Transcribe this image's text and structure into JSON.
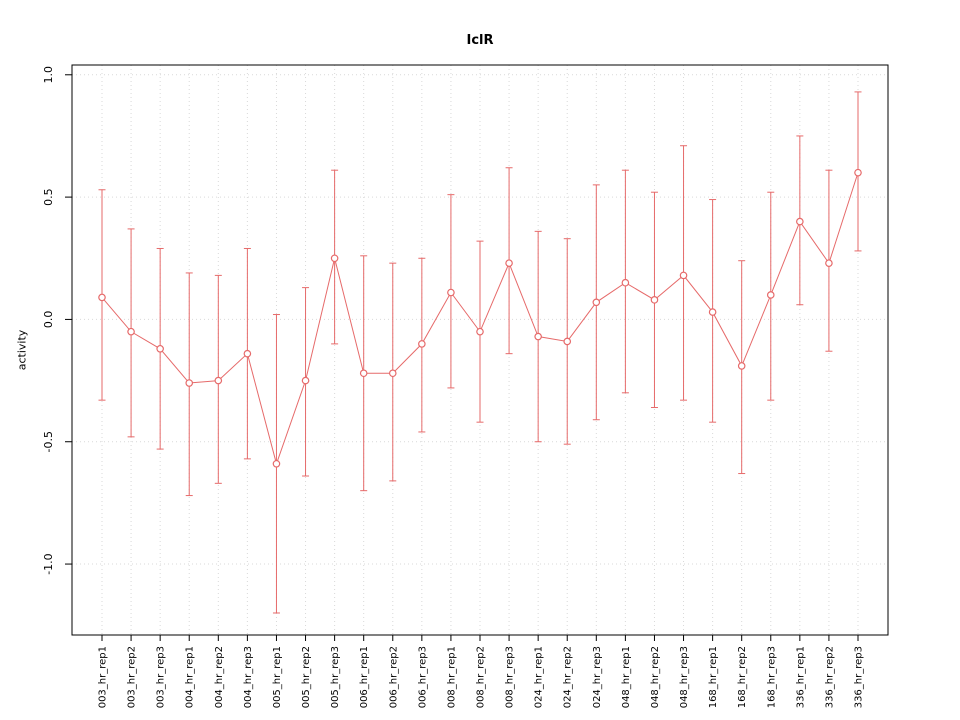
{
  "chart_data": {
    "type": "line",
    "title": "IclR",
    "ylabel": "activity",
    "xlabel": "",
    "legend": "none",
    "grid": true,
    "categories": [
      "003_hr_rep1",
      "003_hr_rep2",
      "003_hr_rep3",
      "004_hr_rep1",
      "004_hr_rep2",
      "004_hr_rep3",
      "005_hr_rep1",
      "005_hr_rep2",
      "005_hr_rep3",
      "006_hr_rep1",
      "006_hr_rep2",
      "006_hr_rep3",
      "008_hr_rep1",
      "008_hr_rep2",
      "008_hr_rep3",
      "024_hr_rep1",
      "024_hr_rep2",
      "024_hr_rep3",
      "048_hr_rep1",
      "048_hr_rep2",
      "048_hr_rep3",
      "168_hr_rep1",
      "168_hr_rep2",
      "168_hr_rep3",
      "336_hr_rep1",
      "336_hr_rep2",
      "336_hr_rep3"
    ],
    "values": [
      0.09,
      -0.05,
      -0.12,
      -0.26,
      -0.25,
      -0.14,
      -0.59,
      -0.25,
      0.25,
      -0.22,
      -0.22,
      -0.1,
      0.11,
      -0.05,
      0.23,
      -0.07,
      -0.09,
      0.07,
      0.15,
      0.08,
      0.18,
      0.03,
      -0.19,
      0.1,
      0.4,
      0.23,
      0.6
    ],
    "error_upper": [
      0.53,
      0.37,
      0.29,
      0.19,
      0.18,
      0.29,
      0.02,
      0.13,
      0.61,
      0.26,
      0.23,
      0.25,
      0.51,
      0.32,
      0.62,
      0.36,
      0.33,
      0.55,
      0.61,
      0.52,
      0.71,
      0.49,
      0.24,
      0.52,
      0.75,
      0.61,
      0.93
    ],
    "error_lower": [
      -0.33,
      -0.48,
      -0.53,
      -0.72,
      -0.67,
      -0.57,
      -1.2,
      -0.64,
      -0.1,
      -0.7,
      -0.66,
      -0.46,
      -0.28,
      -0.42,
      -0.14,
      -0.5,
      -0.51,
      -0.41,
      -0.3,
      -0.36,
      -0.33,
      -0.42,
      -0.63,
      -0.33,
      0.06,
      -0.13,
      0.28
    ],
    "y_ticks": [
      -1.0,
      -0.5,
      0.0,
      0.5,
      1.0
    ],
    "y_tick_labels": [
      "-1.0",
      "-0.5",
      "0.0",
      "0.5",
      "1.0"
    ],
    "ylim": [
      -1.29,
      1.04
    ],
    "series_color": "#e66a6a",
    "grid_color": "#d9d9d9",
    "axis_color": "#000000"
  }
}
